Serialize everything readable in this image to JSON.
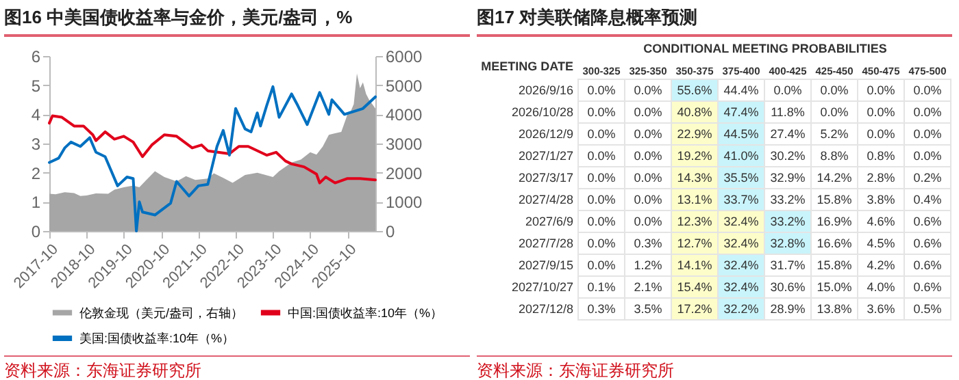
{
  "chart_data": [
    {
      "type": "line",
      "title": "图16 中美国债收益率与金价，美元/盎司，%",
      "legend": "bottom",
      "xlim": [
        "2017-10",
        "2026-07"
      ],
      "xticks": [
        "2017-10",
        "2018-10",
        "2019-10",
        "2020-10",
        "2021-10",
        "2022-10",
        "2023-10",
        "2024-10",
        "2025-10"
      ],
      "ylim": [
        0,
        6
      ],
      "yticks": [
        0,
        1,
        2,
        3,
        4,
        5,
        6
      ],
      "y2lim": [
        0,
        6000
      ],
      "y2ticks": [
        0,
        1000,
        2000,
        3000,
        4000,
        5000,
        6000
      ],
      "series": [
        {
          "name": "伦敦金现（美元/盎司，右轴）",
          "type": "area",
          "axis": "y2",
          "color": "#a6a6a6",
          "x": [
            "2017-10",
            "2017-12",
            "2018-03",
            "2018-06",
            "2018-08",
            "2018-10",
            "2019-01",
            "2019-05",
            "2019-07",
            "2019-10",
            "2020-01",
            "2020-03",
            "2020-05",
            "2020-08",
            "2020-11",
            "2021-03",
            "2021-06",
            "2021-09",
            "2022-01",
            "2022-03",
            "2022-06",
            "2022-09",
            "2023-01",
            "2023-05",
            "2023-10",
            "2023-12",
            "2024-04",
            "2024-07",
            "2024-10",
            "2024-12",
            "2025-02",
            "2025-04",
            "2025-06",
            "2025-08",
            "2025-10",
            "2025-11",
            "2025-12",
            "2026-01",
            "2026-02",
            "2026-03",
            "2026-04",
            "2026-05",
            "2026-07"
          ],
          "values": [
            1280,
            1260,
            1330,
            1300,
            1200,
            1220,
            1290,
            1280,
            1420,
            1500,
            1560,
            1500,
            1720,
            2050,
            1850,
            1700,
            1880,
            1750,
            1800,
            1980,
            1820,
            1650,
            1920,
            2000,
            1850,
            2050,
            2350,
            2450,
            2700,
            2620,
            2900,
            3300,
            3350,
            3400,
            4000,
            4100,
            4350,
            5400,
            4900,
            5100,
            4700,
            4500,
            4200
          ]
        },
        {
          "name": "中国:国债收益率:10年（%）",
          "type": "line",
          "color": "#e0001b",
          "x": [
            "2017-10",
            "2017-11",
            "2018-02",
            "2018-06",
            "2018-09",
            "2018-12",
            "2019-01",
            "2019-04",
            "2019-07",
            "2019-10",
            "2020-01",
            "2020-04",
            "2020-07",
            "2020-11",
            "2021-03",
            "2021-08",
            "2021-11",
            "2022-01",
            "2022-08",
            "2022-11",
            "2023-02",
            "2023-08",
            "2023-11",
            "2024-02",
            "2024-04",
            "2024-08",
            "2024-12",
            "2025-01",
            "2025-03",
            "2025-06",
            "2025-10",
            "2026-02",
            "2026-07"
          ],
          "values": [
            3.7,
            3.95,
            3.9,
            3.6,
            3.6,
            3.3,
            3.1,
            3.4,
            3.15,
            3.25,
            3.05,
            2.55,
            2.95,
            3.3,
            3.25,
            2.85,
            2.95,
            2.75,
            2.65,
            2.9,
            2.9,
            2.6,
            2.7,
            2.4,
            2.3,
            2.2,
            1.95,
            1.65,
            1.85,
            1.65,
            1.8,
            1.8,
            1.75
          ]
        },
        {
          "name": "美国:国债收益率:10年（%）",
          "type": "line",
          "color": "#0070c0",
          "x": [
            "2017-10",
            "2018-01",
            "2018-03",
            "2018-05",
            "2018-08",
            "2018-11",
            "2019-01",
            "2019-04",
            "2019-06",
            "2019-08",
            "2019-11",
            "2020-01",
            "2020-02",
            "2020-03",
            "2020-04",
            "2020-08",
            "2021-01",
            "2021-03",
            "2021-07",
            "2021-10",
            "2022-01",
            "2022-04",
            "2022-06",
            "2022-08",
            "2022-10",
            "2023-01",
            "2023-03",
            "2023-05",
            "2023-06",
            "2023-08",
            "2023-10",
            "2023-12",
            "2024-04",
            "2024-06",
            "2024-09",
            "2025-01",
            "2025-04",
            "2025-05",
            "2025-09",
            "2025-12",
            "2026-03",
            "2026-07"
          ],
          "values": [
            2.35,
            2.5,
            2.85,
            3.05,
            2.9,
            3.2,
            2.7,
            2.55,
            2.05,
            1.55,
            1.85,
            1.8,
            0,
            1.0,
            0.65,
            0.55,
            0.95,
            1.7,
            1.2,
            1.55,
            1.6,
            2.9,
            3.45,
            2.6,
            4.2,
            3.5,
            3.4,
            4.05,
            3.6,
            4.3,
            4.95,
            3.9,
            4.7,
            4.3,
            3.65,
            4.75,
            4.0,
            4.5,
            4.0,
            4.1,
            4.2,
            4.6
          ]
        }
      ],
      "annotations": [
        "资料来源：东海证券研究所"
      ]
    },
    {
      "type": "heatmap",
      "title": "图17 对美联储降息概率预测",
      "xlabel": "CONDITIONAL MEETING PROBABILITIES",
      "ylabel": "MEETING DATE",
      "categories": [
        "300-325",
        "325-350",
        "350-375",
        "375-400",
        "400-425",
        "425-450",
        "450-475",
        "475-500"
      ],
      "y_categories": [
        "2026/9/16",
        "2026/10/28",
        "2026/12/9",
        "2027/1/27",
        "2027/3/17",
        "2027/4/28",
        "2027/6/9",
        "2027/7/28",
        "2027/9/15",
        "2027/10/27",
        "2027/12/8"
      ],
      "cells": [
        [
          0.0,
          0.0,
          55.6,
          44.4,
          0.0,
          0.0,
          0.0,
          0.0
        ],
        [
          0.0,
          0.0,
          40.8,
          47.4,
          11.8,
          0.0,
          0.0,
          0.0
        ],
        [
          0.0,
          0.0,
          22.9,
          44.5,
          27.4,
          5.2,
          0.0,
          0.0
        ],
        [
          0.0,
          0.0,
          19.2,
          41.0,
          30.2,
          8.8,
          0.8,
          0.0
        ],
        [
          0.0,
          0.0,
          14.3,
          35.5,
          32.9,
          14.2,
          2.8,
          0.2
        ],
        [
          0.0,
          0.0,
          13.1,
          33.7,
          33.2,
          15.8,
          3.8,
          0.4
        ],
        [
          0.0,
          0.0,
          12.3,
          32.4,
          33.2,
          16.9,
          4.6,
          0.6
        ],
        [
          0.0,
          0.3,
          12.7,
          32.4,
          32.8,
          16.6,
          4.5,
          0.6
        ],
        [
          0.0,
          1.2,
          14.1,
          32.4,
          31.7,
          15.8,
          4.2,
          0.6
        ],
        [
          0.1,
          2.1,
          15.4,
          32.4,
          30.6,
          15.0,
          4.0,
          0.6
        ],
        [
          0.3,
          3.5,
          17.2,
          32.2,
          28.9,
          13.8,
          3.6,
          0.5
        ]
      ],
      "cell_labels": [
        [
          "0.0%",
          "0.0%",
          "55.6%",
          "44.4%",
          "0.0%",
          "0.0%",
          "0.0%",
          "0.0%"
        ],
        [
          "0.0%",
          "0.0%",
          "40.8%",
          "47.4%",
          "11.8%",
          "0.0%",
          "0.0%",
          "0.0%"
        ],
        [
          "0.0%",
          "0.0%",
          "22.9%",
          "44.5%",
          "27.4%",
          "5.2%",
          "0.0%",
          "0.0%"
        ],
        [
          "0.0%",
          "0.0%",
          "19.2%",
          "41.0%",
          "30.2%",
          "8.8%",
          "0.8%",
          "0.0%"
        ],
        [
          "0.0%",
          "0.0%",
          "14.3%",
          "35.5%",
          "32.9%",
          "14.2%",
          "2.8%",
          "0.2%"
        ],
        [
          "0.0%",
          "0.0%",
          "13.1%",
          "33.7%",
          "33.2%",
          "15.8%",
          "3.8%",
          "0.4%"
        ],
        [
          "0.0%",
          "0.0%",
          "12.3%",
          "32.4%",
          "33.2%",
          "16.9%",
          "4.6%",
          "0.6%"
        ],
        [
          "0.0%",
          "0.3%",
          "12.7%",
          "32.4%",
          "32.8%",
          "16.6%",
          "4.5%",
          "0.6%"
        ],
        [
          "0.0%",
          "1.2%",
          "14.1%",
          "32.4%",
          "31.7%",
          "15.8%",
          "4.2%",
          "0.6%"
        ],
        [
          "0.1%",
          "2.1%",
          "15.4%",
          "32.4%",
          "30.6%",
          "15.0%",
          "4.0%",
          "0.6%"
        ],
        [
          "0.3%",
          "3.5%",
          "17.2%",
          "32.2%",
          "28.9%",
          "13.8%",
          "3.6%",
          "0.5%"
        ]
      ],
      "colors": [
        [
          "#ffffff",
          "#ffffff",
          "#c9f4fb",
          "#ffffff",
          "#ffffff",
          "#ffffff",
          "#ffffff",
          "#ffffff"
        ],
        [
          "#ffffff",
          "#ffffff",
          "#fdfdc9",
          "#c9f4fb",
          "#ffffff",
          "#ffffff",
          "#ffffff",
          "#ffffff"
        ],
        [
          "#ffffff",
          "#ffffff",
          "#fdfdc9",
          "#c9f4fb",
          "#ffffff",
          "#ffffff",
          "#ffffff",
          "#ffffff"
        ],
        [
          "#ffffff",
          "#ffffff",
          "#fdfdc9",
          "#c9f4fb",
          "#ffffff",
          "#ffffff",
          "#ffffff",
          "#ffffff"
        ],
        [
          "#ffffff",
          "#ffffff",
          "#fdfdc9",
          "#c9f4fb",
          "#ffffff",
          "#ffffff",
          "#ffffff",
          "#ffffff"
        ],
        [
          "#ffffff",
          "#ffffff",
          "#fdfdc9",
          "#c9f4fb",
          "#ffffff",
          "#ffffff",
          "#ffffff",
          "#ffffff"
        ],
        [
          "#ffffff",
          "#ffffff",
          "#fdfdc9",
          "#fdfdc9",
          "#c9f4fb",
          "#ffffff",
          "#ffffff",
          "#ffffff"
        ],
        [
          "#ffffff",
          "#ffffff",
          "#fdfdc9",
          "#fdfdc9",
          "#c9f4fb",
          "#ffffff",
          "#ffffff",
          "#ffffff"
        ],
        [
          "#ffffff",
          "#ffffff",
          "#fdfdc9",
          "#c9f4fb",
          "#ffffff",
          "#ffffff",
          "#ffffff",
          "#ffffff"
        ],
        [
          "#ffffff",
          "#ffffff",
          "#fdfdc9",
          "#c9f4fb",
          "#ffffff",
          "#ffffff",
          "#ffffff",
          "#ffffff"
        ],
        [
          "#ffffff",
          "#ffffff",
          "#fdfdc9",
          "#c9f4fb",
          "#ffffff",
          "#ffffff",
          "#ffffff",
          "#ffffff"
        ]
      ],
      "annotations": [
        "资料来源：东海证券研究所"
      ]
    }
  ]
}
